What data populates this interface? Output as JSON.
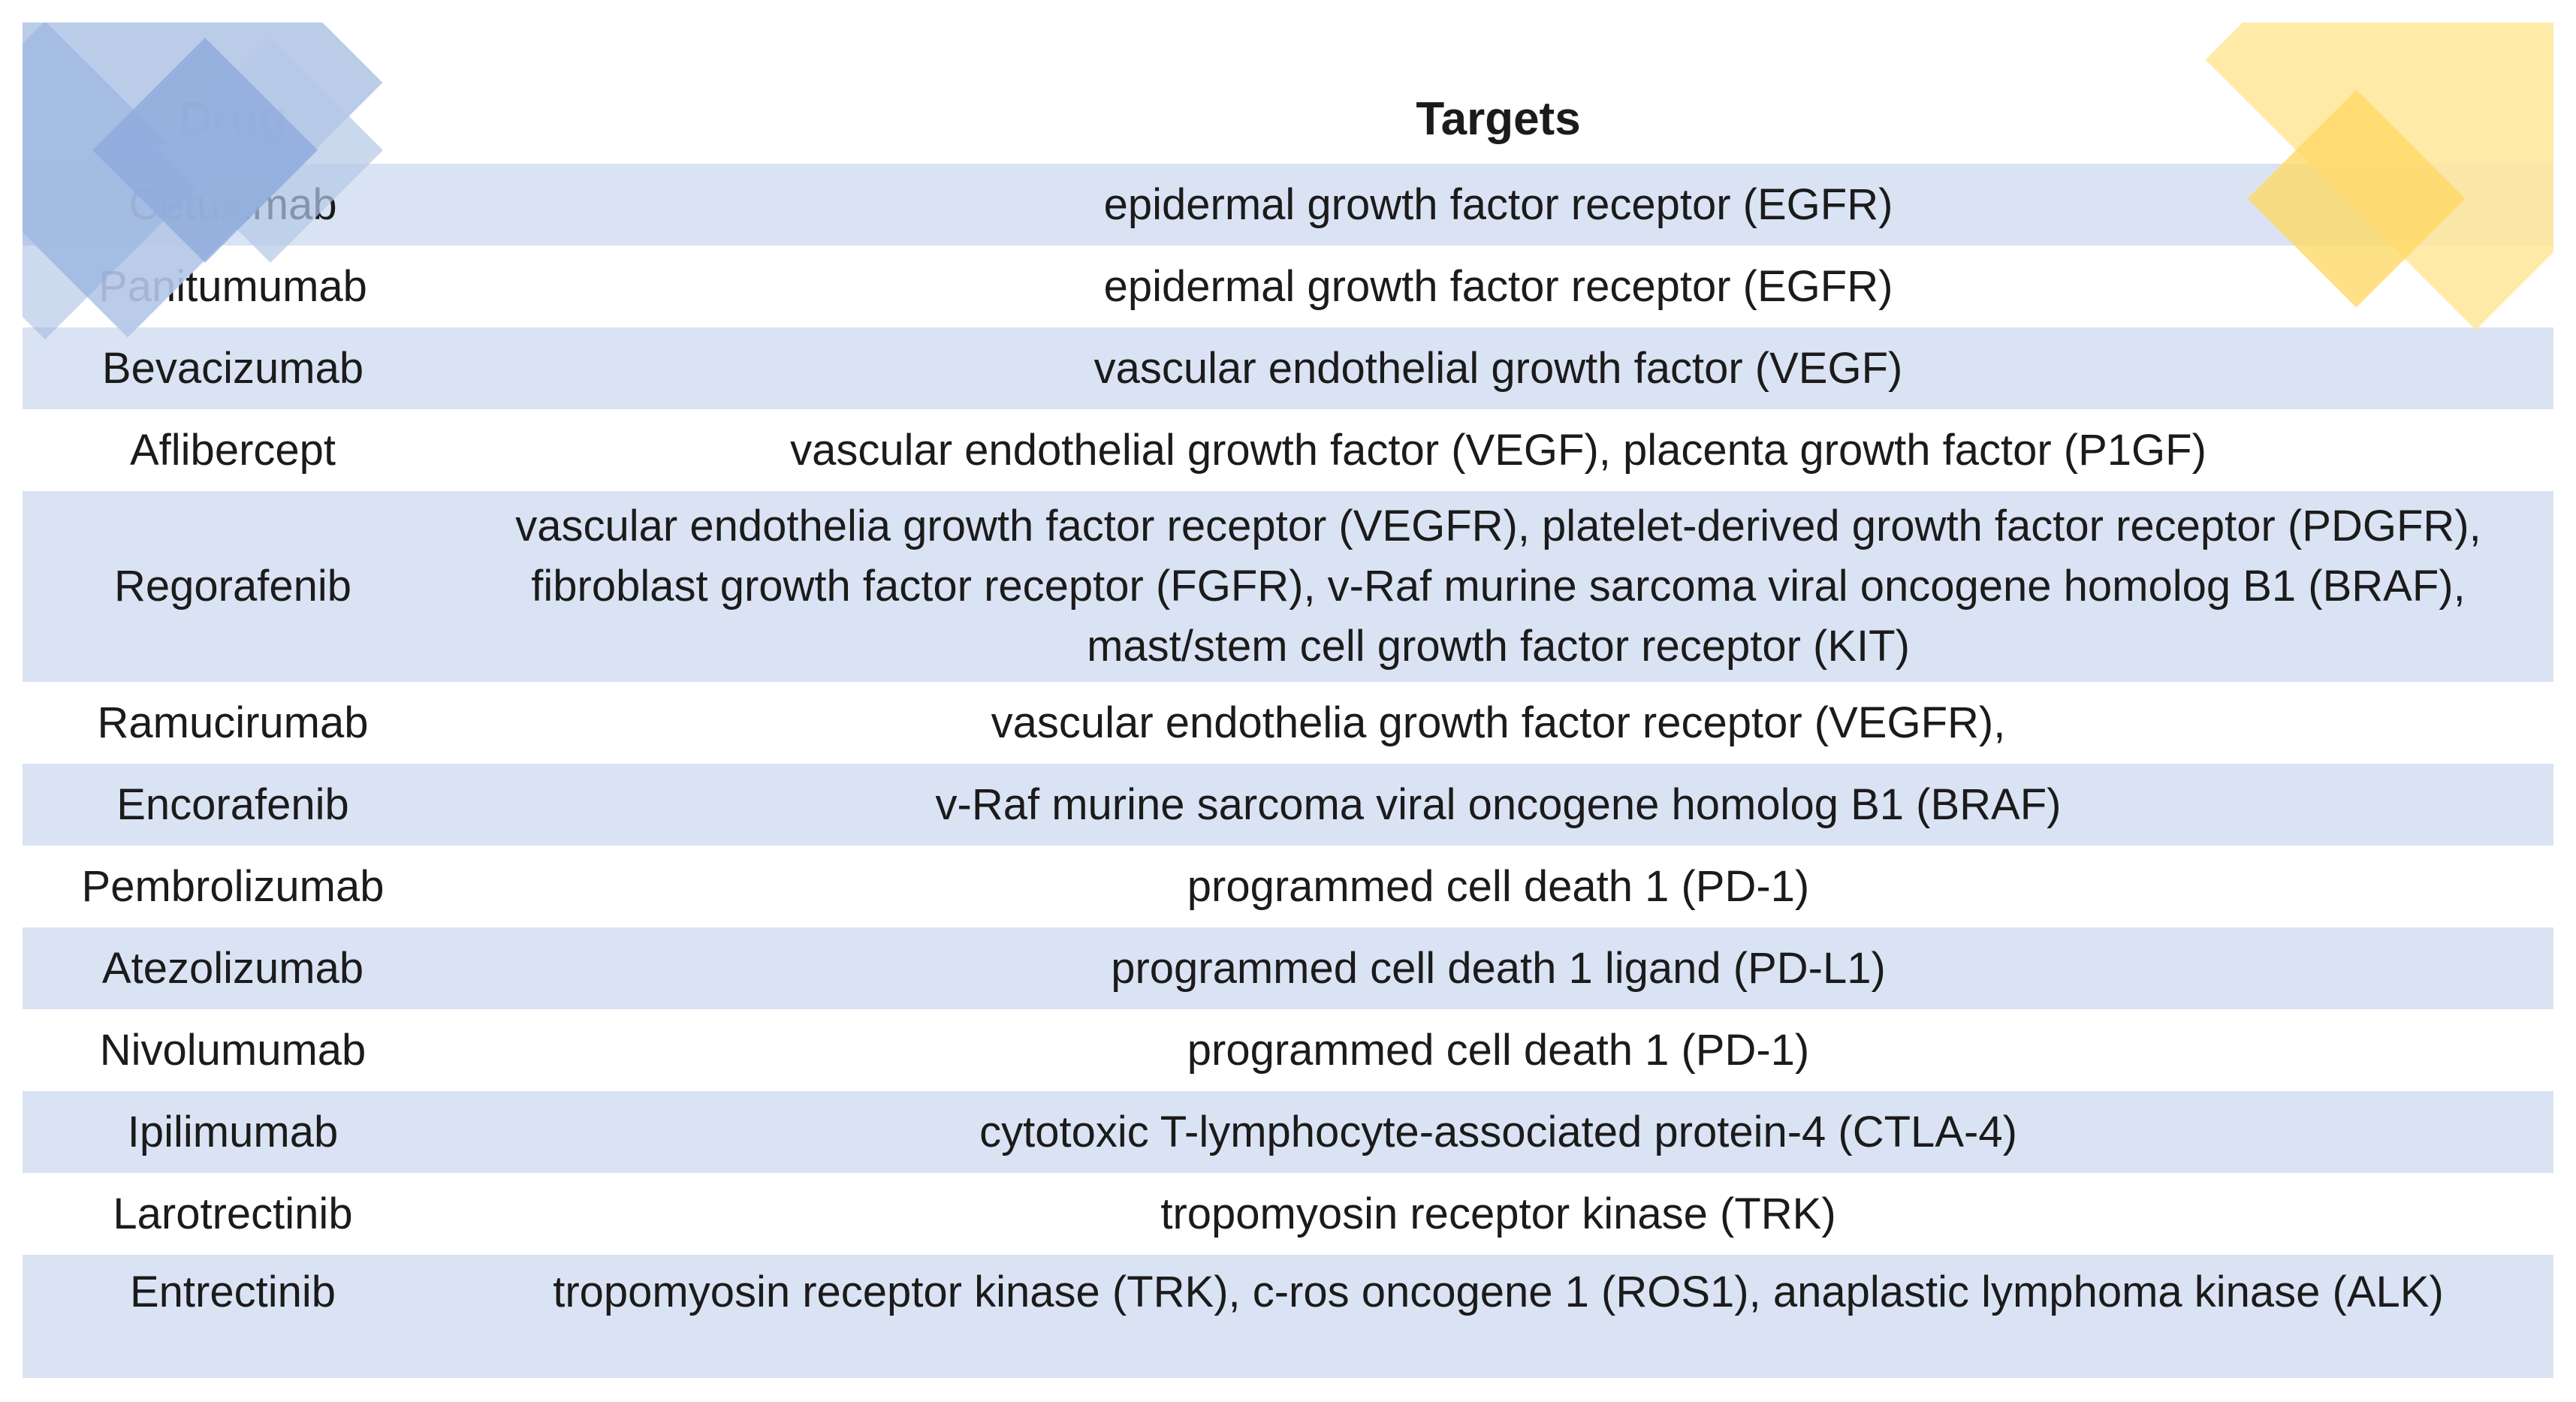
{
  "table": {
    "columns": [
      "Drug",
      "Targets"
    ],
    "rows": [
      {
        "drug": "Cetuximab",
        "targets": "epidermal growth factor receptor (EGFR)"
      },
      {
        "drug": "Panitumumab",
        "targets": "epidermal growth factor receptor (EGFR)"
      },
      {
        "drug": "Bevacizumab",
        "targets": "vascular endothelial growth factor (VEGF)"
      },
      {
        "drug": "Aflibercept",
        "targets": "vascular endothelial growth factor (VEGF), placenta growth factor (P1GF)"
      },
      {
        "drug": "Regorafenib",
        "targets": "vascular endothelia growth factor receptor (VEGFR),  platelet-derived growth factor receptor (PDGFR), fibroblast growth factor receptor (FGFR), v-Raf murine sarcoma viral oncogene homolog B1 (BRAF), mast/stem cell growth factor receptor (KIT)"
      },
      {
        "drug": "Ramucirumab",
        "targets": "vascular endothelia growth factor receptor (VEGFR),"
      },
      {
        "drug": "Encorafenib",
        "targets": "v-Raf murine sarcoma viral oncogene homolog B1 (BRAF)"
      },
      {
        "drug": "Pembrolizumab",
        "targets": "programmed cell death 1 (PD-1)"
      },
      {
        "drug": "Atezolizumab",
        "targets": "programmed cell death 1 ligand (PD-L1)"
      },
      {
        "drug": "Nivolumumab",
        "targets": "programmed cell death 1 (PD-1)"
      },
      {
        "drug": "Ipilimumab",
        "targets": "cytotoxic T-lymphocyte-associated protein-4 (CTLA-4)"
      },
      {
        "drug": "Larotrectinib",
        "targets": "tropomyosin receptor kinase (TRK)"
      },
      {
        "drug": "Entrectinib",
        "targets": "tropomyosin receptor kinase (TRK), c-ros oncogene 1 (ROS1), anaplastic lymphoma kinase (ALK)"
      }
    ]
  },
  "colors": {
    "stripe": "#dae3f3",
    "text": "#1b1b1b",
    "diamond_blue_pale": "#b4c7e7",
    "diamond_blue_medium": "#8faadc",
    "diamond_yellow_pale": "#ffe699",
    "diamond_yellow_medium": "#ffd966"
  }
}
